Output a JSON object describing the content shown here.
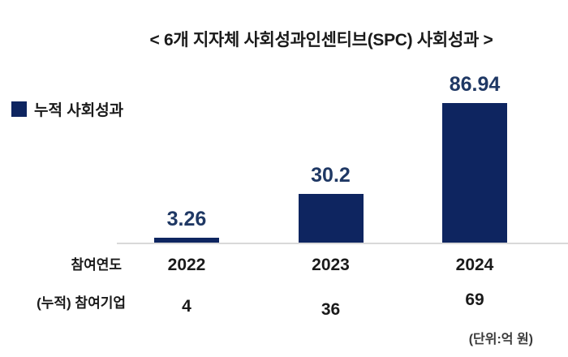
{
  "title": "< 6개 지자체 사회성과인센티브(SPC) 사회성과 >",
  "legend": {
    "label": "누적 사회성과"
  },
  "row_labels": {
    "year": "참여연도",
    "companies": "(누적) 참여기업"
  },
  "unit_note": "(단위:억 원)",
  "colors": {
    "bar": "#0e2560",
    "value_label": "#1f3864",
    "axis_line": "#d9d9d9",
    "text": "#1a1a1a"
  },
  "chart_data": {
    "type": "bar",
    "title": "< 6개 지자체 사회성과인센티브(SPC) 사회성과 >",
    "categories": [
      "2022",
      "2023",
      "2024"
    ],
    "series": [
      {
        "name": "누적 사회성과",
        "values": [
          3.26,
          30.2,
          86.94
        ]
      },
      {
        "name": "(누적) 참여기업",
        "values": [
          4,
          36,
          69
        ]
      }
    ],
    "xlabel": "참여연도",
    "ylabel": "",
    "ylim": [
      0,
      90
    ],
    "grid": false,
    "legend_position": "left",
    "value_labels_shown": true,
    "unit_note": "(단위:억 원)"
  }
}
